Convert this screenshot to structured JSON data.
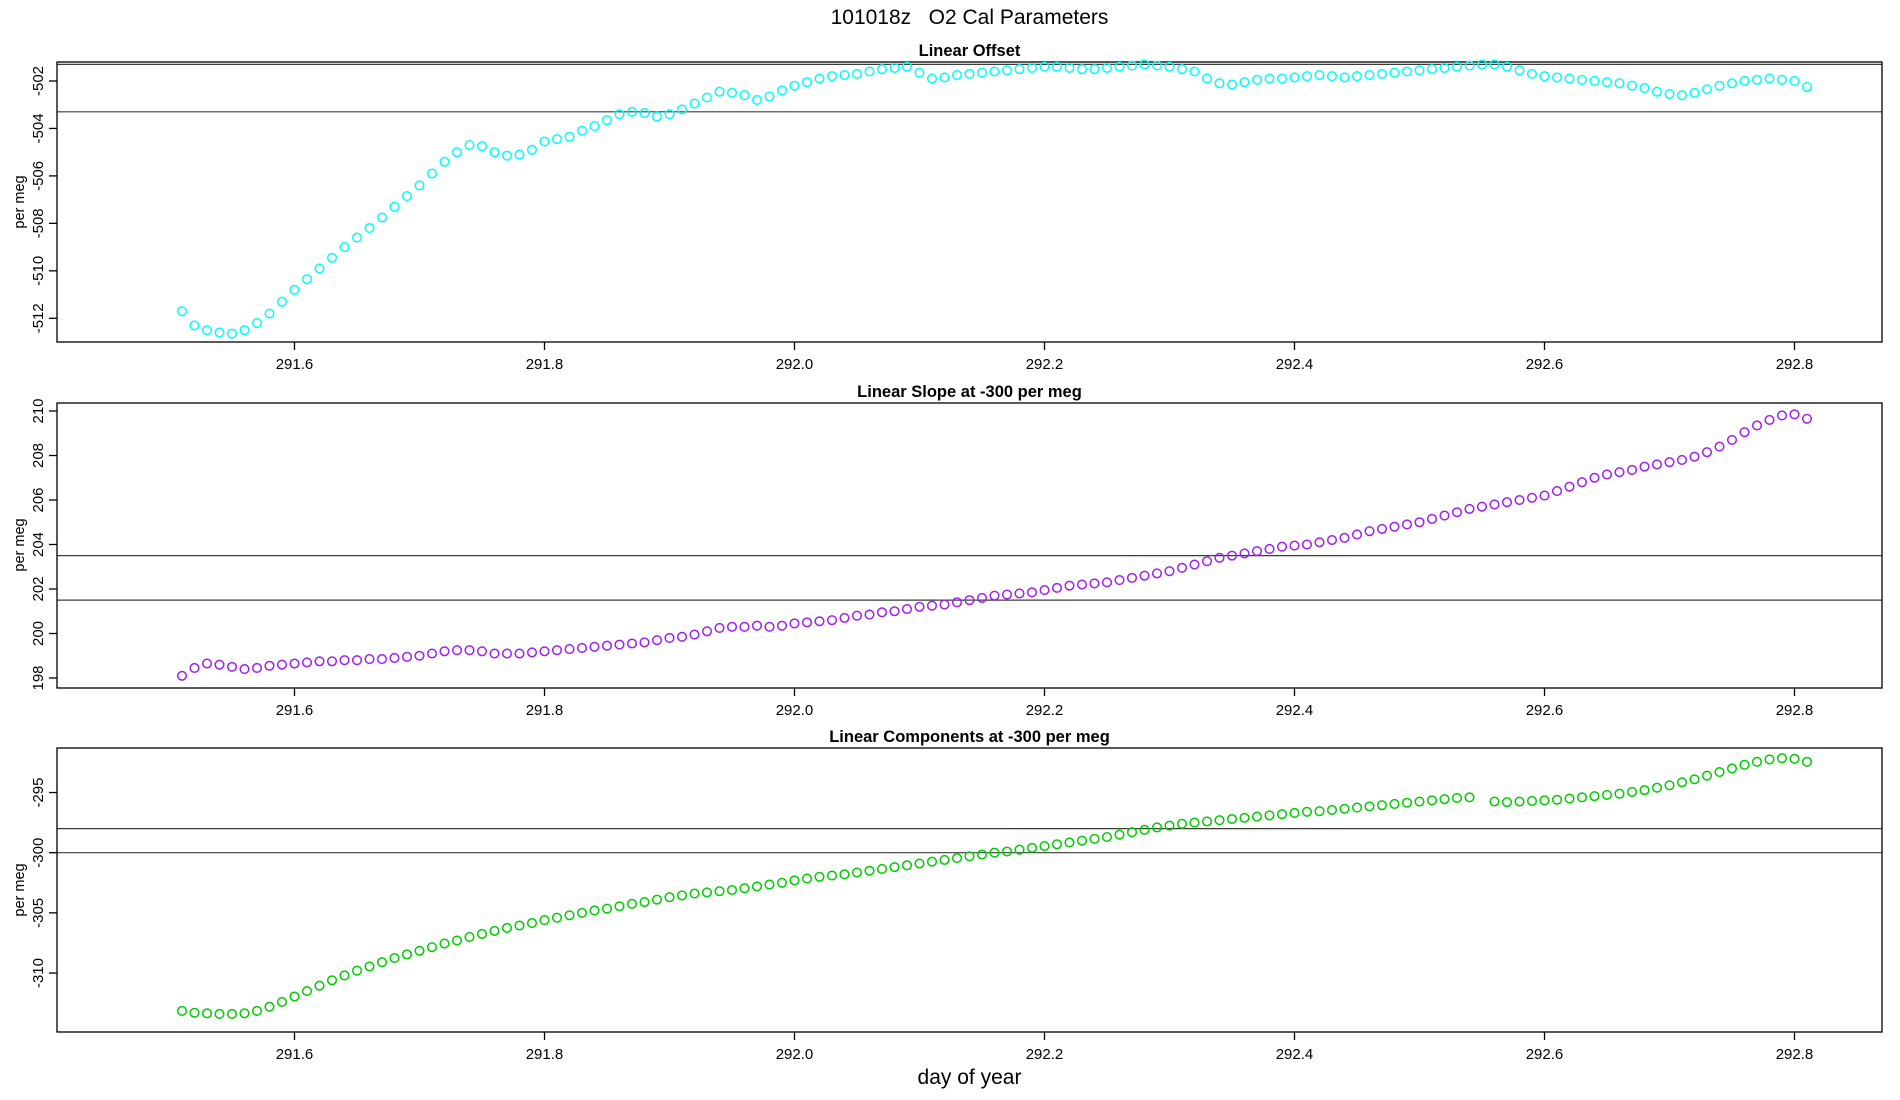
{
  "title": "101018z   O2 Cal Parameters",
  "colors": {
    "background": "#ffffff",
    "axis": "#000000",
    "reference_line": "#3c3c3c",
    "offset_series": "#00FFFF",
    "slope_series": "#A020F0",
    "components_series": "#00CD00"
  },
  "chart_data": {
    "type": "scatter",
    "layout": "three stacked panels, shared x axis, open-circle markers, no grid, no legend",
    "x": {
      "label": "day of year",
      "lim": [
        291.41,
        292.87
      ],
      "tick_values": [
        291.6,
        291.8,
        292.0,
        292.2,
        292.4,
        292.6,
        292.8
      ],
      "tick_labels": [
        "291.6",
        "291.8",
        "292.0",
        "292.2",
        "292.4",
        "292.6",
        "292.8"
      ],
      "values": [
        291.51,
        291.52,
        291.53,
        291.54,
        291.55,
        291.56,
        291.57,
        291.58,
        291.59,
        291.6,
        291.61,
        291.62,
        291.63,
        291.64,
        291.65,
        291.66,
        291.67,
        291.68,
        291.69,
        291.7,
        291.71,
        291.72,
        291.73,
        291.74,
        291.75,
        291.76,
        291.77,
        291.78,
        291.79,
        291.8,
        291.81,
        291.82,
        291.83,
        291.84,
        291.85,
        291.86,
        291.87,
        291.88,
        291.89,
        291.9,
        291.91,
        291.92,
        291.93,
        291.94,
        291.95,
        291.96,
        291.97,
        291.98,
        291.99,
        292.0,
        292.01,
        292.02,
        292.03,
        292.04,
        292.05,
        292.06,
        292.07,
        292.08,
        292.09,
        292.1,
        292.11,
        292.12,
        292.13,
        292.14,
        292.15,
        292.16,
        292.17,
        292.18,
        292.19,
        292.2,
        292.21,
        292.22,
        292.23,
        292.24,
        292.25,
        292.26,
        292.27,
        292.28,
        292.29,
        292.3,
        292.31,
        292.32,
        292.33,
        292.34,
        292.35,
        292.36,
        292.37,
        292.38,
        292.39,
        292.4,
        292.41,
        292.42,
        292.43,
        292.44,
        292.45,
        292.46,
        292.47,
        292.48,
        292.49,
        292.5,
        292.51,
        292.52,
        292.53,
        292.54,
        292.55,
        292.56,
        292.57,
        292.58,
        292.59,
        292.6,
        292.61,
        292.62,
        292.63,
        292.64,
        292.65,
        292.66,
        292.67,
        292.68,
        292.69,
        292.7,
        292.71,
        292.72,
        292.73,
        292.74,
        292.75,
        292.76,
        292.77,
        292.78,
        292.79,
        292.8,
        292.81
      ]
    },
    "panels": [
      {
        "title": "Linear Offset",
        "ylabel": "per meg",
        "point_color": "#00FFFF",
        "ylim": [
          -513.0,
          -501.2
        ],
        "ytick_values": [
          -502,
          -504,
          -506,
          -508,
          -510,
          -512
        ],
        "ytick_labels": [
          "-502",
          "-504",
          "-506",
          "-508",
          "-510",
          "-512"
        ],
        "ref_lines": [
          -501.3,
          -503.3
        ],
        "values": [
          -511.7,
          -512.3,
          -512.5,
          -512.6,
          -512.65,
          -512.5,
          -512.2,
          -511.8,
          -511.3,
          -510.8,
          -510.35,
          -509.9,
          -509.45,
          -509.0,
          -508.6,
          -508.2,
          -507.75,
          -507.3,
          -506.85,
          -506.4,
          -505.9,
          -505.4,
          -505.0,
          -504.7,
          -504.75,
          -505.0,
          -505.15,
          -505.1,
          -504.9,
          -504.55,
          -504.45,
          -504.35,
          -504.1,
          -503.9,
          -503.65,
          -503.4,
          -503.3,
          -503.35,
          -503.5,
          -503.4,
          -503.2,
          -502.95,
          -502.7,
          -502.45,
          -502.5,
          -502.6,
          -502.8,
          -502.65,
          -502.4,
          -502.2,
          -502.05,
          -501.9,
          -501.8,
          -501.75,
          -501.7,
          -501.6,
          -501.5,
          -501.45,
          -501.4,
          -501.65,
          -501.9,
          -501.85,
          -501.75,
          -501.7,
          -501.65,
          -501.6,
          -501.55,
          -501.5,
          -501.45,
          -501.4,
          -501.4,
          -501.45,
          -501.5,
          -501.5,
          -501.45,
          -501.4,
          -501.35,
          -501.3,
          -501.35,
          -501.4,
          -501.5,
          -501.6,
          -501.9,
          -502.1,
          -502.15,
          -502.05,
          -501.95,
          -501.9,
          -501.9,
          -501.85,
          -501.8,
          -501.75,
          -501.8,
          -501.85,
          -501.8,
          -501.75,
          -501.7,
          -501.65,
          -501.6,
          -501.55,
          -501.5,
          -501.45,
          -501.4,
          -501.35,
          -501.3,
          -501.3,
          -501.4,
          -501.55,
          -501.7,
          -501.8,
          -501.85,
          -501.9,
          -501.95,
          -502.0,
          -502.05,
          -502.1,
          -502.2,
          -502.3,
          -502.45,
          -502.55,
          -502.6,
          -502.5,
          -502.35,
          -502.2,
          -502.1,
          -502.0,
          -501.95,
          -501.9,
          -501.95,
          -502.0,
          -502.25
        ]
      },
      {
        "title": "Linear Slope at -300 per meg",
        "ylabel": "per meg",
        "point_color": "#A020F0",
        "ylim": [
          197.55,
          210.36
        ],
        "ytick_values": [
          210,
          208,
          206,
          204,
          202,
          200,
          198
        ],
        "ytick_labels": [
          "210",
          "208",
          "206",
          "204",
          "202",
          "200",
          "198"
        ],
        "ref_lines": [
          203.5,
          201.5
        ],
        "values": [
          198.1,
          198.45,
          198.65,
          198.6,
          198.5,
          198.4,
          198.45,
          198.55,
          198.6,
          198.65,
          198.7,
          198.75,
          198.75,
          198.8,
          198.8,
          198.85,
          198.85,
          198.9,
          198.95,
          199.0,
          199.1,
          199.2,
          199.25,
          199.25,
          199.2,
          199.1,
          199.1,
          199.1,
          199.15,
          199.2,
          199.25,
          199.3,
          199.35,
          199.4,
          199.45,
          199.5,
          199.55,
          199.6,
          199.7,
          199.8,
          199.85,
          199.95,
          200.1,
          200.25,
          200.3,
          200.3,
          200.35,
          200.3,
          200.35,
          200.45,
          200.5,
          200.55,
          200.6,
          200.7,
          200.8,
          200.85,
          200.95,
          201.0,
          201.1,
          201.2,
          201.25,
          201.3,
          201.4,
          201.5,
          201.6,
          201.7,
          201.75,
          201.8,
          201.85,
          201.95,
          202.05,
          202.15,
          202.2,
          202.25,
          202.3,
          202.4,
          202.5,
          202.6,
          202.7,
          202.8,
          202.95,
          203.1,
          203.25,
          203.4,
          203.5,
          203.6,
          203.7,
          203.8,
          203.9,
          203.95,
          204.0,
          204.1,
          204.2,
          204.3,
          204.45,
          204.6,
          204.7,
          204.8,
          204.9,
          205.0,
          205.15,
          205.3,
          205.45,
          205.6,
          205.7,
          205.8,
          205.9,
          206.0,
          206.1,
          206.2,
          206.4,
          206.6,
          206.8,
          207.0,
          207.15,
          207.25,
          207.35,
          207.5,
          207.6,
          207.7,
          207.8,
          207.95,
          208.15,
          208.4,
          208.7,
          209.05,
          209.35,
          209.6,
          209.8,
          209.85,
          209.65
        ]
      },
      {
        "title": "Linear Components at -300 per meg",
        "ylabel": "per meg",
        "point_color": "#00CD00",
        "ylim": [
          -314.9,
          -291.3
        ],
        "ytick_values": [
          -295,
          -300,
          -305,
          -310
        ],
        "ytick_labels": [
          "-295",
          "-300",
          "-305",
          "-310"
        ],
        "ref_lines": [
          -298,
          -300
        ],
        "values": [
          -313.15,
          -313.3,
          -313.35,
          -313.4,
          -313.4,
          -313.35,
          -313.15,
          -312.8,
          -312.4,
          -311.95,
          -311.5,
          -311.05,
          -310.6,
          -310.2,
          -309.8,
          -309.45,
          -309.1,
          -308.75,
          -308.45,
          -308.15,
          -307.85,
          -307.55,
          -307.3,
          -307.0,
          -306.75,
          -306.5,
          -306.25,
          -306.05,
          -305.85,
          -305.6,
          -305.4,
          -305.2,
          -305.0,
          -304.8,
          -304.65,
          -304.45,
          -304.25,
          -304.1,
          -303.9,
          -303.7,
          -303.55,
          -303.4,
          -303.3,
          -303.2,
          -303.1,
          -302.95,
          -302.8,
          -302.65,
          -302.5,
          -302.3,
          -302.15,
          -302.0,
          -301.9,
          -301.8,
          -301.65,
          -301.5,
          -301.35,
          -301.2,
          -301.05,
          -300.9,
          -300.75,
          -300.6,
          -300.45,
          -300.3,
          -300.15,
          -300.0,
          -299.9,
          -299.75,
          -299.6,
          -299.45,
          -299.3,
          -299.15,
          -299.0,
          -298.85,
          -298.7,
          -298.5,
          -298.3,
          -298.1,
          -297.9,
          -297.75,
          -297.6,
          -297.5,
          -297.4,
          -297.3,
          -297.2,
          -297.1,
          -297.0,
          -296.9,
          -296.8,
          -296.7,
          -296.6,
          -296.55,
          -296.45,
          -296.35,
          -296.25,
          -296.15,
          -296.05,
          -295.95,
          -295.85,
          -295.75,
          -295.65,
          -295.55,
          -295.45,
          -295.4,
          null,
          -295.75,
          -295.8,
          -295.75,
          -295.7,
          -295.65,
          -295.6,
          -295.5,
          -295.4,
          -295.3,
          -295.2,
          -295.1,
          -294.95,
          -294.8,
          -294.6,
          -294.4,
          -294.15,
          -293.9,
          -293.6,
          -293.3,
          -293.0,
          -292.7,
          -292.45,
          -292.25,
          -292.15,
          -292.2,
          -292.45
        ]
      }
    ]
  }
}
